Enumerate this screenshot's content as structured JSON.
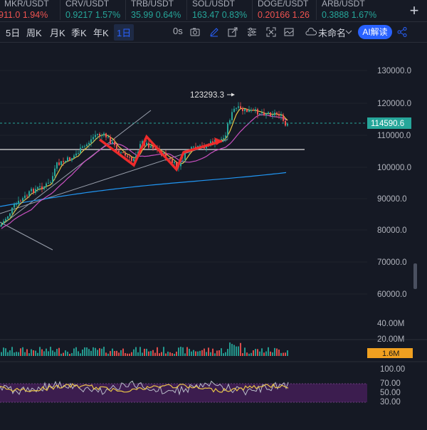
{
  "tickers": [
    {
      "symbol": "MKR/USDT",
      "price": "911.0",
      "change": "1.94%",
      "dir": "down"
    },
    {
      "symbol": "CRV/USDT",
      "price": "0.9217",
      "change": "1.57%",
      "dir": "up"
    },
    {
      "symbol": "TRB/USDT",
      "price": "35.99",
      "change": "0.64%",
      "dir": "up"
    },
    {
      "symbol": "SOL/USDT",
      "price": "163.47",
      "change": "0.83%",
      "dir": "up"
    },
    {
      "symbol": "DOGE/USDT",
      "price": "0.20166",
      "change": "1.26",
      "dir": "down"
    },
    {
      "symbol": "ARB/USDT",
      "price": "0.3888",
      "change": "1.67%",
      "dir": "up"
    }
  ],
  "add_tab": "+",
  "toolbar": {
    "timeframes": [
      "5日",
      "周K",
      "月K",
      "季K",
      "年K",
      "1日"
    ],
    "active_timeframe": "1日",
    "countdown": "0s",
    "layout_name": "未命名",
    "ai_label": "AI解读"
  },
  "price_axis": [
    "130000.0",
    "120000.0",
    "110000.0",
    "100000.0",
    "90000.0",
    "80000.0",
    "70000.0",
    "60000.0"
  ],
  "current_price": "114590.6",
  "high_marker": "123293.3",
  "volume_axis": [
    "40.00M",
    "20.00M"
  ],
  "volume_current": "1.6M",
  "rsi_axis": [
    "100.00",
    "70.00",
    "50.00",
    "30.00"
  ],
  "colors": {
    "bg": "#151924",
    "up": "#26a69a",
    "down": "#ef5350",
    "accent": "#2962ff",
    "ma_yellow": "#e8c547",
    "ma_magenta": "#c850c0",
    "ma_blue": "#2196f3",
    "price_tag": "#26a69a",
    "vol_tag": "#f0a020"
  }
}
